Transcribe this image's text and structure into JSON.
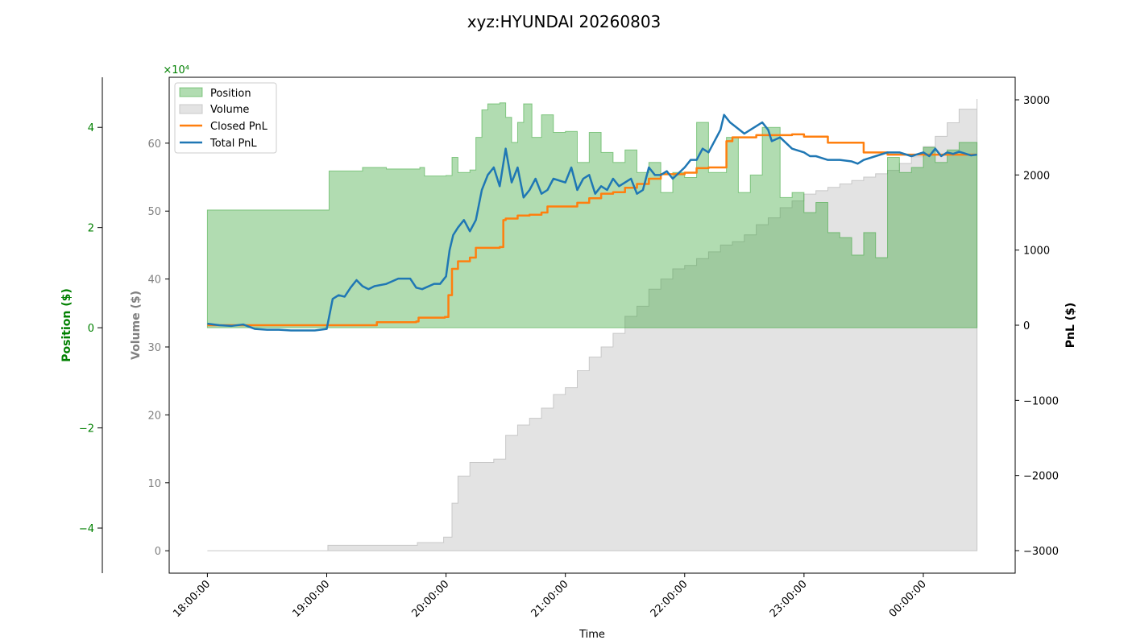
{
  "chart_data": {
    "type": "area",
    "title": "xyz:HYUNDAI 20260803",
    "xlabel": "Time",
    "x_ticks": [
      "18:00:00",
      "19:00:00",
      "20:00:00",
      "21:00:00",
      "22:00:00",
      "23:00:00",
      "00:00:00"
    ],
    "x_range_hours": [
      17.68,
      24.77
    ],
    "axes": {
      "position": {
        "label": "Position ($)",
        "multiplier": "×10⁴",
        "ticks": [
          -4,
          -2,
          0,
          2,
          4
        ],
        "ylim": [
          -4.9,
          5.0
        ]
      },
      "volume": {
        "label": "Volume ($)",
        "ticks": [
          0,
          10,
          20,
          30,
          40,
          50,
          60
        ],
        "ylim": [
          -3.3,
          69.7
        ]
      },
      "pnl": {
        "label": "PnL ($)",
        "ticks": [
          -3000,
          -2000,
          -1000,
          0,
          1000,
          2000,
          3000
        ],
        "ylim": [
          -3300,
          3300
        ]
      }
    },
    "legend": {
      "placement": "upper-left",
      "entries": [
        "Position",
        "Volume",
        "Closed PnL",
        "Total PnL"
      ]
    },
    "colors": {
      "position": "#2ca02c",
      "volume": "#c8c8c8",
      "closed_pnl": "#ff7f0e",
      "total_pnl": "#1f77b4",
      "position_axis": "#008000",
      "volume_axis": "#808080"
    },
    "series": [
      {
        "name": "Position",
        "axis": "position",
        "x": [
          18.0,
          19.0,
          19.02,
          19.3,
          19.5,
          19.78,
          19.82,
          20.0,
          20.05,
          20.1,
          20.2,
          20.25,
          20.3,
          20.35,
          20.45,
          20.5,
          20.55,
          20.6,
          20.65,
          20.72,
          20.8,
          20.9,
          21.0,
          21.1,
          21.2,
          21.3,
          21.4,
          21.5,
          21.6,
          21.7,
          21.8,
          21.9,
          22.0,
          22.1,
          22.2,
          22.35,
          22.45,
          22.55,
          22.65,
          22.8,
          22.9,
          23.0,
          23.1,
          23.2,
          23.3,
          23.4,
          23.5,
          23.6,
          23.7,
          23.8,
          23.9,
          24.0,
          24.1,
          24.2,
          24.3,
          24.45
        ],
        "values": [
          2.35,
          2.35,
          3.13,
          3.2,
          3.17,
          3.2,
          3.03,
          3.04,
          3.4,
          3.1,
          3.15,
          3.8,
          4.35,
          4.47,
          4.49,
          4.2,
          3.7,
          4.1,
          4.47,
          3.8,
          4.25,
          3.9,
          3.92,
          3.3,
          3.9,
          3.5,
          3.3,
          3.55,
          3.1,
          3.3,
          2.7,
          3.1,
          3.0,
          4.1,
          3.1,
          3.8,
          2.7,
          3.05,
          4.0,
          2.6,
          2.7,
          2.3,
          2.5,
          1.9,
          1.8,
          1.45,
          1.9,
          1.4,
          3.4,
          3.1,
          3.2,
          3.6,
          3.3,
          3.55,
          3.7,
          3.25
        ]
      },
      {
        "name": "Volume",
        "axis": "volume",
        "x": [
          18.0,
          19.0,
          19.01,
          19.75,
          19.76,
          19.98,
          20.0,
          20.05,
          20.1,
          20.2,
          20.4,
          20.5,
          20.6,
          20.7,
          20.8,
          20.9,
          21.0,
          21.1,
          21.2,
          21.3,
          21.4,
          21.5,
          21.6,
          21.7,
          21.8,
          21.9,
          22.0,
          22.1,
          22.2,
          22.3,
          22.4,
          22.5,
          22.6,
          22.7,
          22.8,
          22.9,
          23.0,
          23.1,
          23.2,
          23.3,
          23.4,
          23.5,
          23.6,
          23.7,
          23.8,
          23.9,
          24.0,
          24.1,
          24.2,
          24.3,
          24.45
        ],
        "values": [
          0,
          0,
          0.8,
          0.8,
          1.2,
          2.0,
          2.0,
          7.0,
          11.0,
          13.0,
          13.5,
          17.0,
          18.5,
          19.5,
          21.0,
          23.0,
          24.0,
          26.5,
          28.5,
          30.0,
          32.0,
          34.5,
          36.0,
          38.5,
          40.0,
          41.5,
          42.0,
          43.0,
          44.0,
          45.0,
          45.5,
          46.5,
          48.0,
          49.0,
          50.5,
          51.5,
          52.5,
          53.0,
          53.5,
          54.0,
          54.5,
          55.0,
          55.5,
          56.0,
          57.0,
          58.0,
          59.5,
          61.0,
          63.0,
          65.0,
          66.5
        ]
      },
      {
        "name": "Closed PnL",
        "axis": "pnl",
        "x": [
          18.0,
          19.0,
          19.2,
          19.4,
          19.42,
          19.75,
          19.77,
          19.99,
          20.02,
          20.05,
          20.1,
          20.2,
          20.25,
          20.45,
          20.48,
          20.5,
          20.6,
          20.7,
          20.8,
          20.85,
          21.0,
          21.1,
          21.2,
          21.3,
          21.4,
          21.5,
          21.6,
          21.7,
          21.8,
          21.9,
          22.0,
          22.1,
          22.2,
          22.35,
          22.4,
          22.6,
          22.7,
          22.9,
          23.0,
          23.2,
          23.5,
          23.7,
          24.0,
          24.45
        ],
        "values": [
          0,
          0,
          0,
          0,
          40,
          50,
          100,
          110,
          400,
          750,
          850,
          900,
          1030,
          1040,
          1400,
          1420,
          1460,
          1470,
          1500,
          1580,
          1580,
          1630,
          1690,
          1750,
          1770,
          1830,
          1880,
          1950,
          2010,
          2010,
          2030,
          2090,
          2100,
          2450,
          2500,
          2530,
          2530,
          2540,
          2510,
          2430,
          2300,
          2270,
          2270,
          2270
        ]
      },
      {
        "name": "Total PnL",
        "axis": "pnl",
        "x": [
          18.0,
          18.1,
          18.2,
          18.3,
          18.4,
          18.5,
          18.6,
          18.7,
          18.8,
          18.9,
          19.0,
          19.05,
          19.1,
          19.15,
          19.2,
          19.25,
          19.3,
          19.35,
          19.4,
          19.5,
          19.6,
          19.7,
          19.75,
          19.8,
          19.9,
          19.95,
          20.0,
          20.03,
          20.06,
          20.1,
          20.15,
          20.2,
          20.25,
          20.3,
          20.35,
          20.4,
          20.45,
          20.5,
          20.55,
          20.6,
          20.65,
          20.7,
          20.75,
          20.8,
          20.85,
          20.9,
          21.0,
          21.05,
          21.1,
          21.15,
          21.2,
          21.25,
          21.3,
          21.35,
          21.4,
          21.45,
          21.5,
          21.55,
          21.6,
          21.65,
          21.7,
          21.75,
          21.8,
          21.85,
          21.9,
          22.0,
          22.05,
          22.1,
          22.15,
          22.2,
          22.25,
          22.3,
          22.33,
          22.38,
          22.42,
          22.5,
          22.55,
          22.6,
          22.65,
          22.7,
          22.73,
          22.8,
          22.9,
          23.0,
          23.05,
          23.1,
          23.2,
          23.3,
          23.4,
          23.45,
          23.5,
          23.6,
          23.7,
          23.8,
          23.9,
          24.0,
          24.05,
          24.1,
          24.15,
          24.2,
          24.25,
          24.3,
          24.4,
          24.45
        ],
        "values": [
          20,
          0,
          -10,
          10,
          -50,
          -60,
          -60,
          -70,
          -70,
          -70,
          -50,
          350,
          400,
          380,
          500,
          600,
          520,
          480,
          520,
          550,
          620,
          620,
          500,
          480,
          550,
          550,
          650,
          1000,
          1200,
          1300,
          1400,
          1250,
          1400,
          1800,
          2000,
          2100,
          1850,
          2350,
          1900,
          2100,
          1700,
          1800,
          1950,
          1750,
          1800,
          1950,
          1900,
          2100,
          1800,
          1950,
          2000,
          1750,
          1850,
          1800,
          1950,
          1850,
          1900,
          1950,
          1750,
          1800,
          2100,
          2000,
          2000,
          2050,
          1950,
          2100,
          2200,
          2200,
          2350,
          2300,
          2450,
          2600,
          2800,
          2700,
          2650,
          2550,
          2600,
          2650,
          2700,
          2600,
          2450,
          2500,
          2350,
          2300,
          2250,
          2250,
          2200,
          2200,
          2180,
          2150,
          2200,
          2250,
          2300,
          2300,
          2250,
          2300,
          2250,
          2350,
          2250,
          2300,
          2280,
          2310,
          2260,
          2270
        ]
      }
    ]
  }
}
